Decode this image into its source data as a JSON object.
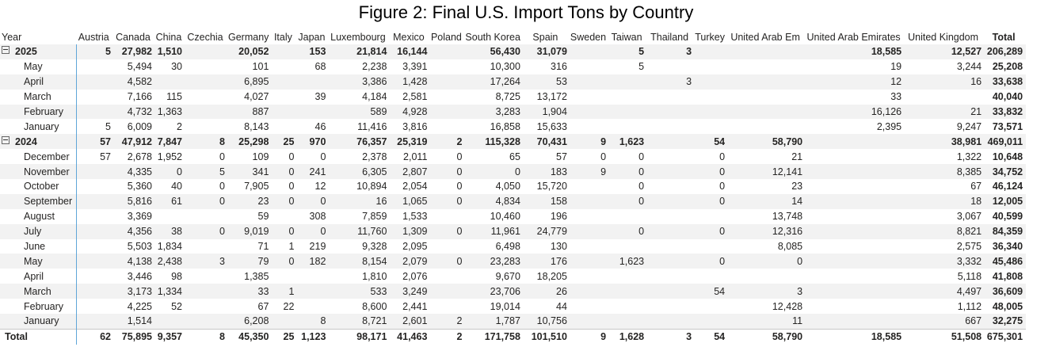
{
  "title": "Figure 2: Final U.S. Import Tons by Country",
  "year_header": "Year",
  "columns": [
    "Austria",
    "Canada",
    "China",
    "Czechia",
    "Germany",
    "Italy",
    "Japan",
    "Luxembourg",
    "Mexico",
    "Poland",
    "South Korea",
    "Spain",
    "Sweden",
    "Taiwan",
    "Thailand",
    "Turkey",
    "United Arab Em",
    "United Arab Emirates",
    "United Kingdom",
    "Total"
  ],
  "rows": [
    {
      "type": "year",
      "label": "2025",
      "values": [
        "5",
        "27,982",
        "1,510",
        "",
        "20,052",
        "",
        "153",
        "21,814",
        "16,144",
        "",
        "56,430",
        "31,079",
        "",
        "5",
        "3",
        "",
        "",
        "18,585",
        "12,527",
        "206,289"
      ]
    },
    {
      "type": "month",
      "label": "May",
      "values": [
        "",
        "5,494",
        "30",
        "",
        "101",
        "",
        "68",
        "2,238",
        "3,391",
        "",
        "10,300",
        "316",
        "",
        "5",
        "",
        "",
        "",
        "19",
        "3,244",
        "25,208"
      ]
    },
    {
      "type": "month",
      "label": "April",
      "values": [
        "",
        "4,582",
        "",
        "",
        "6,895",
        "",
        "",
        "3,386",
        "1,428",
        "",
        "17,264",
        "53",
        "",
        "",
        "3",
        "",
        "",
        "12",
        "16",
        "33,638"
      ]
    },
    {
      "type": "month",
      "label": "March",
      "values": [
        "",
        "7,166",
        "115",
        "",
        "4,027",
        "",
        "39",
        "4,184",
        "2,581",
        "",
        "8,725",
        "13,172",
        "",
        "",
        "",
        "",
        "",
        "33",
        "",
        "40,040"
      ]
    },
    {
      "type": "month",
      "label": "February",
      "values": [
        "",
        "4,732",
        "1,363",
        "",
        "887",
        "",
        "",
        "589",
        "4,928",
        "",
        "3,283",
        "1,904",
        "",
        "",
        "",
        "",
        "",
        "16,126",
        "21",
        "33,832"
      ]
    },
    {
      "type": "month",
      "label": "January",
      "values": [
        "5",
        "6,009",
        "2",
        "",
        "8,143",
        "",
        "46",
        "11,416",
        "3,816",
        "",
        "16,858",
        "15,633",
        "",
        "",
        "",
        "",
        "",
        "2,395",
        "9,247",
        "73,571"
      ]
    },
    {
      "type": "year",
      "label": "2024",
      "values": [
        "57",
        "47,912",
        "7,847",
        "8",
        "25,298",
        "25",
        "970",
        "76,357",
        "25,319",
        "2",
        "115,328",
        "70,431",
        "9",
        "1,623",
        "",
        "54",
        "58,790",
        "",
        "38,981",
        "469,011"
      ]
    },
    {
      "type": "month",
      "label": "December",
      "values": [
        "57",
        "2,678",
        "1,952",
        "0",
        "109",
        "0",
        "0",
        "2,378",
        "2,011",
        "0",
        "65",
        "57",
        "0",
        "0",
        "",
        "0",
        "21",
        "",
        "1,322",
        "10,648"
      ]
    },
    {
      "type": "month",
      "label": "November",
      "values": [
        "",
        "4,335",
        "0",
        "5",
        "341",
        "0",
        "241",
        "6,305",
        "2,807",
        "0",
        "0",
        "183",
        "9",
        "0",
        "",
        "0",
        "12,141",
        "",
        "8,385",
        "34,752"
      ]
    },
    {
      "type": "month",
      "label": "October",
      "values": [
        "",
        "5,360",
        "40",
        "0",
        "7,905",
        "0",
        "12",
        "10,894",
        "2,054",
        "0",
        "4,050",
        "15,720",
        "",
        "0",
        "",
        "0",
        "23",
        "",
        "67",
        "46,124"
      ]
    },
    {
      "type": "month",
      "label": "September",
      "values": [
        "",
        "5,816",
        "61",
        "0",
        "23",
        "0",
        "0",
        "16",
        "1,065",
        "0",
        "4,834",
        "158",
        "",
        "0",
        "",
        "0",
        "14",
        "",
        "18",
        "12,005"
      ]
    },
    {
      "type": "month",
      "label": "August",
      "values": [
        "",
        "3,369",
        "",
        "",
        "59",
        "",
        "308",
        "7,859",
        "1,533",
        "",
        "10,460",
        "196",
        "",
        "",
        "",
        "",
        "13,748",
        "",
        "3,067",
        "40,599"
      ]
    },
    {
      "type": "month",
      "label": "July",
      "values": [
        "",
        "4,356",
        "38",
        "0",
        "9,019",
        "0",
        "0",
        "11,760",
        "1,309",
        "0",
        "11,961",
        "24,779",
        "",
        "0",
        "",
        "0",
        "12,316",
        "",
        "8,821",
        "84,359"
      ]
    },
    {
      "type": "month",
      "label": "June",
      "values": [
        "",
        "5,503",
        "1,834",
        "",
        "71",
        "1",
        "219",
        "9,328",
        "2,095",
        "",
        "6,498",
        "130",
        "",
        "",
        "",
        "",
        "8,085",
        "",
        "2,575",
        "36,340"
      ]
    },
    {
      "type": "month",
      "label": "May",
      "values": [
        "",
        "4,138",
        "2,438",
        "3",
        "79",
        "0",
        "182",
        "8,154",
        "2,079",
        "0",
        "23,283",
        "176",
        "",
        "1,623",
        "",
        "0",
        "0",
        "",
        "3,332",
        "45,486"
      ]
    },
    {
      "type": "month",
      "label": "April",
      "values": [
        "",
        "3,446",
        "98",
        "",
        "1,385",
        "",
        "",
        "1,810",
        "2,076",
        "",
        "9,670",
        "18,205",
        "",
        "",
        "",
        "",
        "",
        "",
        "5,118",
        "41,808"
      ]
    },
    {
      "type": "month",
      "label": "March",
      "values": [
        "",
        "3,173",
        "1,334",
        "",
        "33",
        "1",
        "",
        "533",
        "3,249",
        "",
        "23,706",
        "26",
        "",
        "",
        "",
        "54",
        "3",
        "",
        "4,497",
        "36,609"
      ]
    },
    {
      "type": "month",
      "label": "February",
      "values": [
        "",
        "4,225",
        "52",
        "",
        "67",
        "22",
        "",
        "8,600",
        "2,441",
        "",
        "19,014",
        "44",
        "",
        "",
        "",
        "",
        "12,428",
        "",
        "1,112",
        "48,005"
      ]
    },
    {
      "type": "month",
      "label": "January",
      "values": [
        "",
        "1,514",
        "",
        "",
        "6,208",
        "",
        "8",
        "8,721",
        "2,601",
        "2",
        "1,787",
        "10,756",
        "",
        "",
        "",
        "",
        "11",
        "",
        "667",
        "32,275"
      ]
    }
  ],
  "total_row": {
    "label": "Total",
    "values": [
      "62",
      "75,895",
      "9,357",
      "8",
      "45,350",
      "25",
      "1,123",
      "98,171",
      "41,463",
      "2",
      "171,758",
      "101,510",
      "9",
      "1,628",
      "3",
      "54",
      "58,790",
      "18,585",
      "51,508",
      "675,301"
    ]
  }
}
